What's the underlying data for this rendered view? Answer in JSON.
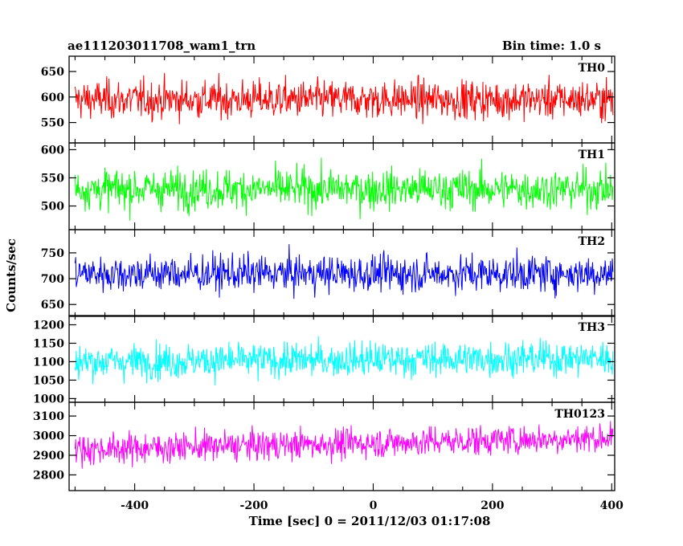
{
  "header": {
    "title": "ae111203011708_wam1_trn",
    "bin_time": "Bin time: 1.0 s"
  },
  "chart_data": {
    "type": "line",
    "xlabel": "Time [sec] 0 = 2011/12/03 01:17:08",
    "ylabel": "Counts/sec",
    "x_range": [
      -510,
      405
    ],
    "x_ticks": [
      -400,
      -200,
      0,
      200,
      400
    ],
    "bin_time_s": 1.0,
    "panels": [
      {
        "name": "TH0",
        "color": "#ff0000",
        "ylim": [
          510,
          680
        ],
        "yticks": [
          550,
          600,
          650
        ],
        "mean": 595,
        "amplitude": 32,
        "trend": [
          595,
          595
        ]
      },
      {
        "name": "TH1",
        "color": "#00ff00",
        "ylim": [
          458,
          612
        ],
        "yticks": [
          500,
          550,
          600
        ],
        "mean": 530,
        "amplitude": 30,
        "trend": [
          530,
          530
        ]
      },
      {
        "name": "TH2",
        "color": "#0000ff",
        "ylim": [
          627,
          795
        ],
        "yticks": [
          650,
          700,
          750
        ],
        "mean": 710,
        "amplitude": 30,
        "trend": [
          710,
          710
        ]
      },
      {
        "name": "TH3",
        "color": "#00ffff",
        "ylim": [
          990,
          1225
        ],
        "yticks": [
          1000,
          1050,
          1100,
          1150,
          1200
        ],
        "mean": 1100,
        "amplitude": 40,
        "trend": [
          1100,
          1110
        ]
      },
      {
        "name": "TH0123",
        "color": "#ff00ff",
        "ylim": [
          2720,
          3170
        ],
        "yticks": [
          2800,
          2900,
          3000,
          3100
        ],
        "mean": 2930,
        "amplitude": 65,
        "trend": [
          2930,
          2990
        ]
      }
    ]
  }
}
